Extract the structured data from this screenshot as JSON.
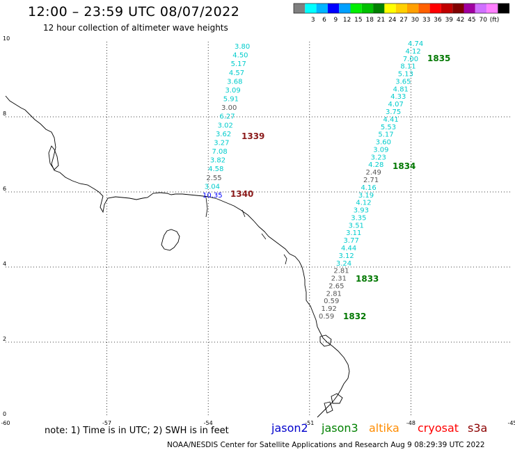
{
  "title": "12:00 – 23:59 UTC 08/07/2022",
  "subtitle": "12 hour collection of altimeter wave heights",
  "note": "note:  1) Time is in UTC;  2) SWH is in feet",
  "credit": "NOAA/NESDIS Center for Satellite Applications and Research    Aug  9 08:29:39 UTC 2022",
  "colorbar": {
    "colors": [
      "#7f7f7f",
      "#00ffff",
      "#00b4ff",
      "#0000ff",
      "#00a0ff",
      "#00ee00",
      "#00c000",
      "#008000",
      "#ffff00",
      "#ffd000",
      "#ffa000",
      "#ff6000",
      "#ff0000",
      "#c00000",
      "#800000",
      "#a000a0",
      "#d070ff",
      "#ff80ff",
      "#000000"
    ],
    "labels": [
      "3",
      "6",
      "9",
      "12",
      "15",
      "18",
      "21",
      "24",
      "27",
      "30",
      "33",
      "36",
      "39",
      "42",
      "45",
      "70",
      "(ft)"
    ]
  },
  "satellites": [
    {
      "name": "jason2",
      "color": "#0000cc"
    },
    {
      "name": "jason3",
      "color": "#008000"
    },
    {
      "name": "altika",
      "color": "#ff8c00"
    },
    {
      "name": "cryosat",
      "color": "#ff0000"
    },
    {
      "name": "s3a",
      "color": "#8b0000"
    }
  ],
  "axes": {
    "x_ticks": [
      "-60",
      "-57",
      "-54",
      "-51",
      "-48",
      "-45"
    ],
    "y_ticks": [
      "0",
      "2",
      "4",
      "6",
      "8",
      "10"
    ],
    "lon_range": [
      -60,
      -45
    ],
    "lat_range": [
      0,
      10
    ]
  },
  "track_west": {
    "values": [
      "3.80",
      "4.50",
      "5.17",
      "4.57",
      "3.68",
      "3.09",
      "5.91",
      "3.00",
      "6.27",
      "3.02",
      "3.62",
      "3.27",
      "7.08",
      "3.82",
      "4.58",
      "2.55",
      "3.04",
      "10.35"
    ],
    "colors": [
      "c",
      "c",
      "c",
      "c",
      "c",
      "c",
      "c",
      "g",
      "c",
      "c",
      "c",
      "c",
      "c",
      "c",
      "c",
      "g",
      "c",
      "b"
    ],
    "labels": [
      {
        "text": "1339",
        "color": "#8b1a1a"
      },
      {
        "text": "1340",
        "color": "#8b1a1a"
      }
    ]
  },
  "track_east": {
    "values": [
      "4.74",
      "4.12",
      "7.00",
      "8.11",
      "5.13",
      "3.65",
      "4.81",
      "4.33",
      "4.07",
      "3.75",
      "4.41",
      "5.53",
      "5.17",
      "3.60",
      "3.09",
      "3.23",
      "4.28",
      "2.49",
      "2.71",
      "4.16",
      "3.19",
      "4.12",
      "3.93",
      "3.35",
      "3.51",
      "3.11",
      "3.77",
      "4.44",
      "3.12",
      "3.24",
      "2.81",
      "2.31",
      "2.65",
      "2.81",
      "0.59",
      "1.92",
      "0.59"
    ],
    "colors": [
      "c",
      "c",
      "c",
      "c",
      "c",
      "c",
      "c",
      "c",
      "c",
      "c",
      "c",
      "c",
      "c",
      "c",
      "c",
      "c",
      "c",
      "g",
      "g",
      "c",
      "c",
      "c",
      "c",
      "c",
      "c",
      "c",
      "c",
      "c",
      "c",
      "c",
      "g",
      "g",
      "g",
      "g",
      "g",
      "g",
      "g"
    ],
    "labels": [
      {
        "text": "1835",
        "color": "#007700"
      },
      {
        "text": "1834",
        "color": "#007700"
      },
      {
        "text": "1833",
        "color": "#007700"
      },
      {
        "text": "1832",
        "color": "#007700"
      }
    ]
  }
}
